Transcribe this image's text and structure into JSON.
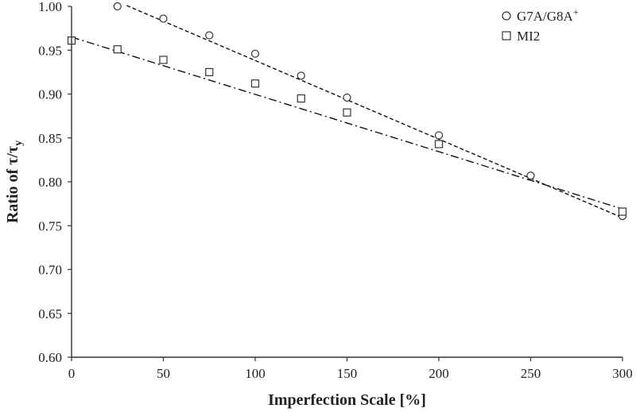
{
  "chart_data": {
    "type": "scatter",
    "title": "",
    "xlabel": "Imperfection Scale [%]",
    "ylabel": {
      "main": "Ratio of τ/τ",
      "subscript": "y"
    },
    "xlim": [
      0,
      300
    ],
    "ylim": [
      0.6,
      1.0
    ],
    "xticks": [
      "0",
      "50",
      "100",
      "150",
      "200",
      "250",
      "300"
    ],
    "yticks": [
      "0.60",
      "0.65",
      "0.70",
      "0.75",
      "0.80",
      "0.85",
      "0.90",
      "0.95",
      "1.00"
    ],
    "grid": false,
    "legend_position": "top-right",
    "series": [
      {
        "name": "G7A/G8A",
        "name_superscript": "+",
        "marker": "circle",
        "trendline": "dashed",
        "x": [
          25,
          50,
          75,
          100,
          125,
          150,
          200,
          250,
          300
        ],
        "y": [
          1.0,
          0.986,
          0.967,
          0.946,
          0.921,
          0.896,
          0.853,
          0.807,
          0.761
        ],
        "fit": {
          "x": [
            30,
            300
          ],
          "y": [
            1.001,
            0.759
          ]
        }
      },
      {
        "name": "MI2",
        "marker": "square",
        "trendline": "dash-dot",
        "x": [
          0,
          25,
          50,
          75,
          100,
          125,
          150,
          200,
          300
        ],
        "y": [
          0.961,
          0.951,
          0.939,
          0.925,
          0.912,
          0.895,
          0.879,
          0.843,
          0.766
        ],
        "fit": {
          "x": [
            0,
            300
          ],
          "y": [
            0.965,
            0.769
          ]
        }
      }
    ]
  }
}
